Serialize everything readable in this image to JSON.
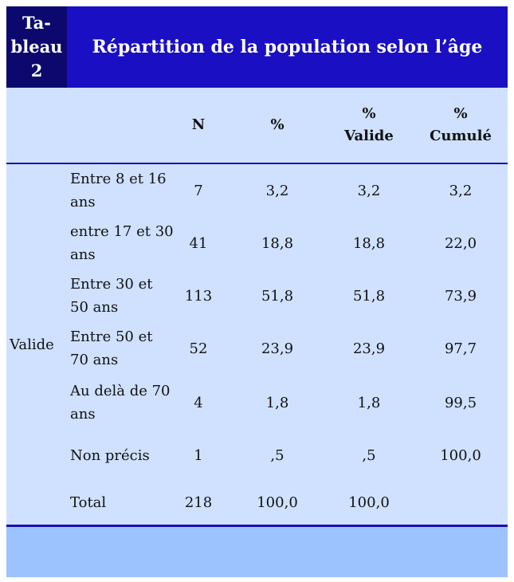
{
  "table": {
    "tab_label": [
      "Ta-",
      "bleau",
      "2"
    ],
    "title": "Répartition de la population selon l’âge",
    "columns": [
      {
        "line1": "",
        "line2": "N"
      },
      {
        "line1": "",
        "line2": "%"
      },
      {
        "line1": "%",
        "line2": "Valide"
      },
      {
        "line1": "%",
        "line2": "Cumulé"
      }
    ],
    "group_label": "Valide",
    "rows": [
      {
        "label": "Entre 8 et 16 ans",
        "n": "7",
        "pct": "3,2",
        "valid": "3,2",
        "cum": "3,2"
      },
      {
        "label": "entre 17 et 30 ans",
        "n": "41",
        "pct": "18,8",
        "valid": "18,8",
        "cum": "22,0"
      },
      {
        "label": "Entre 30 et 50 ans",
        "n": "113",
        "pct": "51,8",
        "valid": "51,8",
        "cum": "73,9"
      },
      {
        "label": "Entre 50 et 70 ans",
        "n": "52",
        "pct": "23,9",
        "valid": "23,9",
        "cum": "97,7"
      },
      {
        "label": "Au delà de 70 ans",
        "n": "4",
        "pct": "1,8",
        "valid": "1,8",
        "cum": "99,5"
      },
      {
        "label": "Non précis",
        "n": "1",
        "pct": ",5",
        "valid": ",5",
        "cum": "100,0"
      },
      {
        "label": "Total",
        "n": "218",
        "pct": "100,0",
        "valid": "100,0",
        "cum": ""
      }
    ]
  },
  "colors": {
    "header_bg": "#1a0fc2",
    "tab_label_bg": "#0c086e",
    "body_bg": "#cfe1ff",
    "footer_bg": "#9dc3ff",
    "rule": "#1a12a8"
  }
}
